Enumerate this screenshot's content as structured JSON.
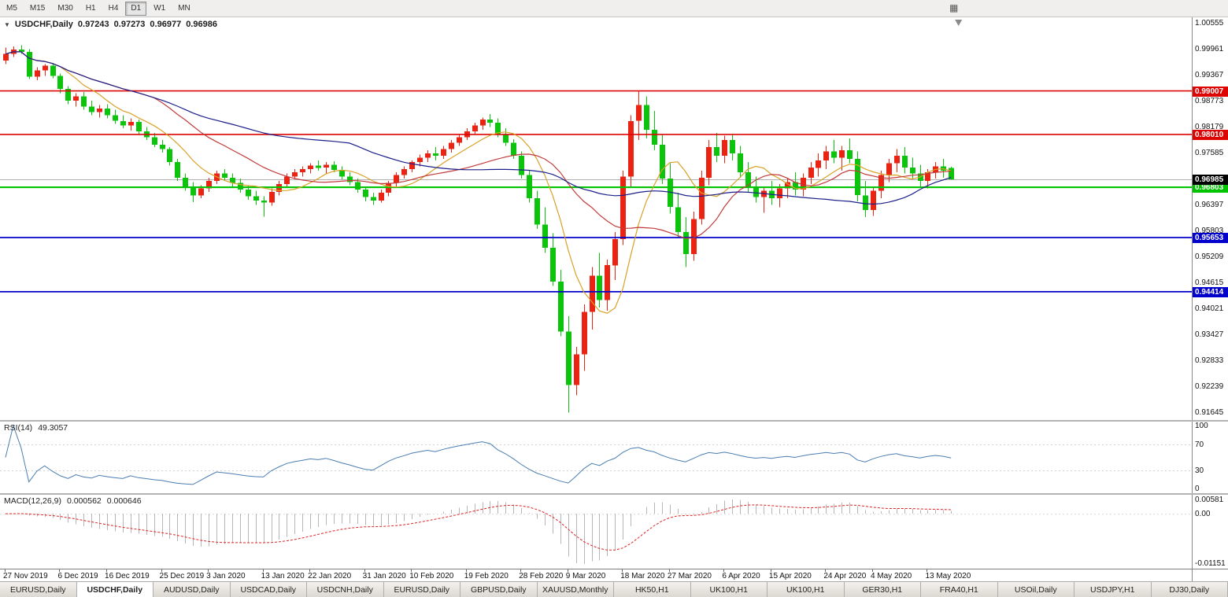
{
  "toolbar": {
    "timeframes": [
      {
        "label": "M5",
        "active": false
      },
      {
        "label": "M15",
        "active": false
      },
      {
        "label": "M30",
        "active": false
      },
      {
        "label": "H1",
        "active": false
      },
      {
        "label": "H4",
        "active": false
      },
      {
        "label": "D1",
        "active": true
      },
      {
        "label": "W1",
        "active": false
      },
      {
        "label": "MN",
        "active": false
      }
    ]
  },
  "chart_data": {
    "type": "candlestick",
    "symbol": "USDCHF",
    "timeframe": "Daily",
    "title": {
      "symbol": "USDCHF,Daily",
      "open": "0.97243",
      "high": "0.97273",
      "low": "0.96977",
      "close": "0.96986"
    },
    "colors": {
      "bull": "#ea2313",
      "bear": "#0cc40c"
    },
    "data_width_frac": 0.8,
    "scale": {
      "min": 0.9148,
      "max": 1.0069,
      "labels": [
        "1.00555",
        "0.99961",
        "0.99367",
        "0.98773",
        "0.98179",
        "0.97585",
        "0.96991",
        "0.96397",
        "0.95803",
        "0.95209",
        "0.94615",
        "0.94021",
        "0.93427",
        "0.92833",
        "0.92239",
        "0.91645"
      ]
    },
    "hlines": [
      {
        "price": 0.99007,
        "label": "0.99007",
        "color": "#dd0404",
        "width": 1.6
      },
      {
        "price": 0.9801,
        "label": "0.98010",
        "color": "#dd0404",
        "width": 1.6
      },
      {
        "price": 0.96803,
        "label": "0.96803",
        "color": "#00c400",
        "width": 2.2
      },
      {
        "price": 0.95653,
        "label": "0.95653",
        "color": "#0202cc",
        "width": 1.8
      },
      {
        "price": 0.94414,
        "label": "0.94414",
        "color": "#0202cc",
        "width": 1.8
      }
    ],
    "current_price": {
      "price": 0.96985,
      "label": "0.96985"
    },
    "moving_averages": [
      {
        "period": 8,
        "color": "#d9a227"
      },
      {
        "period": 20,
        "color": "#c23b3b"
      },
      {
        "period": 45,
        "color": "#1c1f8a"
      }
    ],
    "dates": [
      "27 Nov 2019",
      "6 Dec 2019",
      "16 Dec 2019",
      "25 Dec 2019",
      "3 Jan 2020",
      "13 Jan 2020",
      "22 Jan 2020",
      "31 Jan 2020",
      "10 Feb 2020",
      "19 Feb 2020",
      "28 Feb 2020",
      "9 Mar 2020",
      "18 Mar 2020",
      "27 Mar 2020",
      "6 Apr 2020",
      "15 Apr 2020",
      "24 Apr 2020",
      "4 May 2020",
      "13 May 2020"
    ],
    "candles": [
      [
        0.997,
        1.0,
        0.9962,
        0.9985
      ],
      [
        0.9985,
        1.0002,
        0.9978,
        0.9995
      ],
      [
        0.9995,
        1.0005,
        0.9985,
        0.999
      ],
      [
        0.999,
        0.9996,
        0.9928,
        0.9933
      ],
      [
        0.9933,
        0.9955,
        0.9925,
        0.9948
      ],
      [
        0.9948,
        0.9962,
        0.9935,
        0.9958
      ],
      [
        0.9958,
        0.9965,
        0.993,
        0.9935
      ],
      [
        0.9935,
        0.994,
        0.9895,
        0.9905
      ],
      [
        0.9905,
        0.9912,
        0.987,
        0.9878
      ],
      [
        0.9878,
        0.9895,
        0.9865,
        0.9888
      ],
      [
        0.9888,
        0.9898,
        0.9858,
        0.9865
      ],
      [
        0.9865,
        0.9878,
        0.9845,
        0.9852
      ],
      [
        0.9852,
        0.9868,
        0.984,
        0.986
      ],
      [
        0.986,
        0.987,
        0.9838,
        0.9845
      ],
      [
        0.9845,
        0.9858,
        0.9825,
        0.9832
      ],
      [
        0.9832,
        0.9845,
        0.9815,
        0.9822
      ],
      [
        0.9822,
        0.9838,
        0.981,
        0.983
      ],
      [
        0.983,
        0.9835,
        0.98,
        0.9808
      ],
      [
        0.9808,
        0.9818,
        0.9788,
        0.9795
      ],
      [
        0.9795,
        0.9805,
        0.9772,
        0.9778
      ],
      [
        0.9778,
        0.9788,
        0.976,
        0.9768
      ],
      [
        0.9768,
        0.9772,
        0.973,
        0.9738
      ],
      [
        0.9738,
        0.9745,
        0.9695,
        0.9702
      ],
      [
        0.9702,
        0.9712,
        0.9672,
        0.968
      ],
      [
        0.968,
        0.9692,
        0.9646,
        0.9662
      ],
      [
        0.9662,
        0.9685,
        0.9655,
        0.9678
      ],
      [
        0.9678,
        0.9702,
        0.967,
        0.9695
      ],
      [
        0.9695,
        0.9718,
        0.9688,
        0.9712
      ],
      [
        0.9712,
        0.9722,
        0.9695,
        0.9702
      ],
      [
        0.9702,
        0.9712,
        0.9682,
        0.969
      ],
      [
        0.969,
        0.97,
        0.9668,
        0.9675
      ],
      [
        0.9675,
        0.9685,
        0.9652,
        0.966
      ],
      [
        0.966,
        0.9672,
        0.964,
        0.965
      ],
      [
        0.965,
        0.966,
        0.9613,
        0.9645
      ],
      [
        0.9645,
        0.9678,
        0.9638,
        0.967
      ],
      [
        0.967,
        0.9695,
        0.9662,
        0.9688
      ],
      [
        0.9688,
        0.9712,
        0.968,
        0.9705
      ],
      [
        0.9705,
        0.9722,
        0.9698,
        0.9715
      ],
      [
        0.9715,
        0.9728,
        0.9705,
        0.9722
      ],
      [
        0.9722,
        0.9735,
        0.9712,
        0.973
      ],
      [
        0.973,
        0.9742,
        0.9718,
        0.9725
      ],
      [
        0.9725,
        0.9738,
        0.9712,
        0.9732
      ],
      [
        0.9732,
        0.974,
        0.9715,
        0.972
      ],
      [
        0.972,
        0.9728,
        0.9698,
        0.9705
      ],
      [
        0.9705,
        0.9715,
        0.9685,
        0.9692
      ],
      [
        0.9692,
        0.97,
        0.9668,
        0.9675
      ],
      [
        0.9675,
        0.9682,
        0.9648,
        0.9658
      ],
      [
        0.9658,
        0.9668,
        0.964,
        0.965
      ],
      [
        0.965,
        0.9675,
        0.9645,
        0.9668
      ],
      [
        0.9668,
        0.9695,
        0.966,
        0.969
      ],
      [
        0.969,
        0.9715,
        0.9682,
        0.9708
      ],
      [
        0.9708,
        0.9728,
        0.97,
        0.9722
      ],
      [
        0.9722,
        0.9742,
        0.9715,
        0.9738
      ],
      [
        0.9738,
        0.9755,
        0.9728,
        0.9748
      ],
      [
        0.9748,
        0.9765,
        0.9738,
        0.9758
      ],
      [
        0.9758,
        0.9772,
        0.9742,
        0.9752
      ],
      [
        0.9752,
        0.9775,
        0.9745,
        0.9768
      ],
      [
        0.9768,
        0.9788,
        0.976,
        0.9782
      ],
      [
        0.9782,
        0.98,
        0.9775,
        0.9795
      ],
      [
        0.9795,
        0.9815,
        0.9788,
        0.9808
      ],
      [
        0.9808,
        0.9828,
        0.98,
        0.9822
      ],
      [
        0.9822,
        0.984,
        0.9812,
        0.9835
      ],
      [
        0.9835,
        0.9848,
        0.9818,
        0.9828
      ],
      [
        0.9828,
        0.9838,
        0.9795,
        0.9802
      ],
      [
        0.9802,
        0.9815,
        0.9775,
        0.9782
      ],
      [
        0.9782,
        0.979,
        0.9745,
        0.9752
      ],
      [
        0.9752,
        0.9762,
        0.97,
        0.9708
      ],
      [
        0.9708,
        0.972,
        0.9645,
        0.9655
      ],
      [
        0.9655,
        0.9672,
        0.9585,
        0.9595
      ],
      [
        0.9595,
        0.9635,
        0.953,
        0.9542
      ],
      [
        0.9542,
        0.9575,
        0.9455,
        0.9465
      ],
      [
        0.9465,
        0.9492,
        0.934,
        0.935
      ],
      [
        0.935,
        0.9385,
        0.9165,
        0.9228
      ],
      [
        0.9228,
        0.9315,
        0.9205,
        0.9298
      ],
      [
        0.9298,
        0.9412,
        0.926,
        0.9395
      ],
      [
        0.9395,
        0.9498,
        0.9355,
        0.9478
      ],
      [
        0.9478,
        0.953,
        0.9405,
        0.9422
      ],
      [
        0.9422,
        0.9515,
        0.9398,
        0.9502
      ],
      [
        0.9502,
        0.9578,
        0.9468,
        0.9562
      ],
      [
        0.9562,
        0.9718,
        0.9548,
        0.9705
      ],
      [
        0.9705,
        0.9845,
        0.968,
        0.9832
      ],
      [
        0.9832,
        0.9901,
        0.9788,
        0.9868
      ],
      [
        0.9868,
        0.9888,
        0.9792,
        0.9812
      ],
      [
        0.9812,
        0.9855,
        0.9765,
        0.9778
      ],
      [
        0.9778,
        0.98,
        0.9688,
        0.97
      ],
      [
        0.97,
        0.9735,
        0.962,
        0.9635
      ],
      [
        0.9635,
        0.9668,
        0.9565,
        0.9578
      ],
      [
        0.9578,
        0.9612,
        0.9498,
        0.9528
      ],
      [
        0.9528,
        0.9625,
        0.9512,
        0.9608
      ],
      [
        0.9608,
        0.9718,
        0.9595,
        0.9702
      ],
      [
        0.9702,
        0.9788,
        0.9685,
        0.9772
      ],
      [
        0.9772,
        0.9805,
        0.9738,
        0.9752
      ],
      [
        0.9752,
        0.9798,
        0.9735,
        0.9788
      ],
      [
        0.9788,
        0.9802,
        0.9742,
        0.9758
      ],
      [
        0.9758,
        0.9775,
        0.9702,
        0.9715
      ],
      [
        0.9715,
        0.9738,
        0.9668,
        0.968
      ],
      [
        0.968,
        0.9705,
        0.9645,
        0.9658
      ],
      [
        0.9658,
        0.9682,
        0.9622,
        0.9672
      ],
      [
        0.9672,
        0.9695,
        0.964,
        0.9655
      ],
      [
        0.9655,
        0.9688,
        0.9635,
        0.9678
      ],
      [
        0.9678,
        0.9702,
        0.9655,
        0.9692
      ],
      [
        0.9692,
        0.9715,
        0.9662,
        0.9675
      ],
      [
        0.9675,
        0.9712,
        0.966,
        0.9702
      ],
      [
        0.9702,
        0.9738,
        0.9688,
        0.9725
      ],
      [
        0.9725,
        0.9758,
        0.9705,
        0.9742
      ],
      [
        0.9742,
        0.9775,
        0.9722,
        0.9762
      ],
      [
        0.9762,
        0.9788,
        0.9735,
        0.9748
      ],
      [
        0.9748,
        0.9775,
        0.9718,
        0.9765
      ],
      [
        0.9765,
        0.9792,
        0.9735,
        0.9745
      ],
      [
        0.9745,
        0.9762,
        0.9648,
        0.9662
      ],
      [
        0.9662,
        0.9695,
        0.9612,
        0.9628
      ],
      [
        0.9628,
        0.9682,
        0.9615,
        0.9672
      ],
      [
        0.9672,
        0.9718,
        0.9655,
        0.9708
      ],
      [
        0.9708,
        0.9745,
        0.9692,
        0.9735
      ],
      [
        0.9735,
        0.9768,
        0.9715,
        0.9752
      ],
      [
        0.9752,
        0.9772,
        0.9712,
        0.9725
      ],
      [
        0.9725,
        0.9748,
        0.9698,
        0.9712
      ],
      [
        0.9712,
        0.9732,
        0.9682,
        0.9695
      ],
      [
        0.9695,
        0.9722,
        0.9678,
        0.9715
      ],
      [
        0.9715,
        0.9738,
        0.97,
        0.9728
      ],
      [
        0.9728,
        0.9745,
        0.9702,
        0.9718
      ],
      [
        0.97243,
        0.97273,
        0.96977,
        0.96986
      ]
    ]
  },
  "rsi": {
    "label": "RSI(14)",
    "value": "49.3057",
    "period": 14,
    "color": "#4a7db1",
    "levels": [
      "100",
      "70",
      "30",
      "0"
    ]
  },
  "macd": {
    "label": "MACD(12,26,9)",
    "value_main": "0.000562",
    "value_signal": "0.000646",
    "axis_labels": [
      "0.00581",
      "0.00",
      "-0.01151"
    ]
  },
  "tabs": [
    {
      "label": "EURUSD,Daily",
      "active": false
    },
    {
      "label": "USDCHF,Daily",
      "active": true
    },
    {
      "label": "AUDUSD,Daily",
      "active": false
    },
    {
      "label": "USDCAD,Daily",
      "active": false
    },
    {
      "label": "USDCNH,Daily",
      "active": false
    },
    {
      "label": "EURUSD,Daily",
      "active": false
    },
    {
      "label": "GBPUSD,Daily",
      "active": false
    },
    {
      "label": "XAUUSD,Monthly",
      "active": false
    },
    {
      "label": "HK50,H1",
      "active": false
    },
    {
      "label": "UK100,H1",
      "active": false
    },
    {
      "label": "UK100,H1",
      "active": false
    },
    {
      "label": "GER30,H1",
      "active": false
    },
    {
      "label": "FRA40,H1",
      "active": false
    },
    {
      "label": "USOil,Daily",
      "active": false
    },
    {
      "label": "USDJPY,H1",
      "active": false
    },
    {
      "label": "DJ30,Daily",
      "active": false
    }
  ]
}
